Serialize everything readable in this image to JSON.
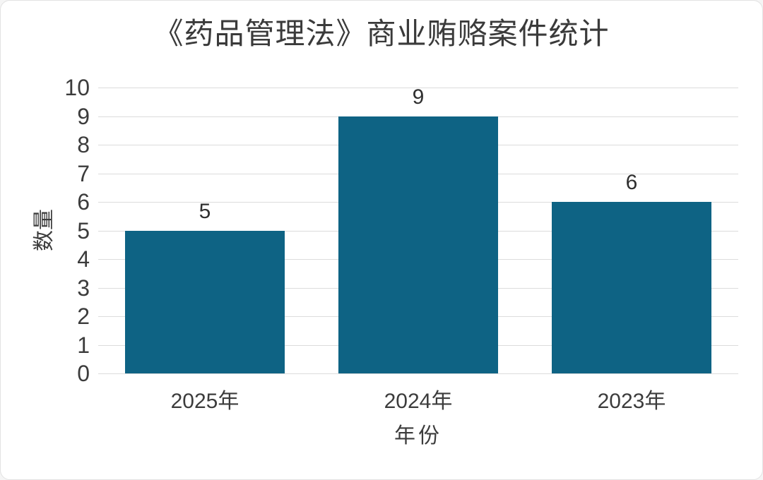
{
  "chart_data": {
    "type": "bar",
    "title": "《药品管理法》商业贿赂案件统计",
    "categories": [
      "2025年",
      "2024年",
      "2023年"
    ],
    "values": [
      5,
      9,
      6
    ],
    "xlabel": "年份",
    "ylabel": "数量",
    "ylim": [
      0,
      10
    ],
    "yticks": [
      0,
      1,
      2,
      3,
      4,
      5,
      6,
      7,
      8,
      9,
      10
    ],
    "grid": "horizontal",
    "legend": "none",
    "colors": {
      "bar": "#0e6384",
      "gridline": "#dcdcdc",
      "text": "#3c3c3c",
      "title": "#3a3a3a",
      "background": "#ffffff",
      "card_border": "#e2e2e2"
    }
  }
}
